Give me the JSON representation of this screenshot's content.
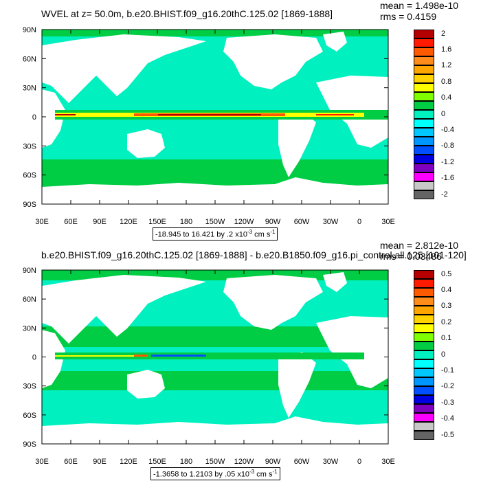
{
  "panels": [
    {
      "title": "WVEL at z=  50.0m, b.e20.BHIST.f09_g16.20thC.125.02 [1869-1888]",
      "mean": "mean = 1.498e-10",
      "rms": "rms = 0.4159",
      "range_text": "-18.945 to 16.421 by .2 x10",
      "range_exp": "-3",
      "range_unit": " cm s",
      "range_unit_exp": "-1",
      "lat_labels": [
        "90N",
        "60N",
        "30N",
        "0",
        "30S",
        "60S",
        "90S"
      ],
      "lon_labels": [
        "30E",
        "60E",
        "90E",
        "120E",
        "150E",
        "180",
        "150W",
        "120W",
        "90W",
        "60W",
        "30W",
        "0",
        "30E"
      ],
      "colorbar_labels": [
        "2",
        "1.6",
        "1.2",
        "0.8",
        "0.4",
        "0",
        "-0.4",
        "-0.8",
        "-1.2",
        "-1.6",
        "-2"
      ],
      "colorbar_colors": [
        "#b40000",
        "#ff1a00",
        "#ff5a00",
        "#ff8c1a",
        "#ffa500",
        "#ffd200",
        "#ffff00",
        "#7fff00",
        "#00cc44",
        "#00f0c0",
        "#00ffff",
        "#00c8ff",
        "#0096ff",
        "#0050ff",
        "#0000e0",
        "#8000c0",
        "#ff00ff",
        "#c8c8c8",
        "#646464"
      ]
    },
    {
      "title": "b.e20.BHIST.f09_g16.20thC.125.02 [1869-1888] - b.e20.B1850.f09_g16.pi_control.all.125 [101-120]",
      "mean": "mean = 2.812e-10",
      "rms": "rms = 0.03486",
      "range_text": "-1.3658 to 1.2103 by .05 x10",
      "range_exp": "-3",
      "range_unit": " cm s",
      "range_unit_exp": "-1",
      "lat_labels": [
        "90N",
        "60N",
        "30N",
        "0",
        "30S",
        "60S",
        "90S"
      ],
      "lon_labels": [
        "30E",
        "60E",
        "90E",
        "120E",
        "150E",
        "180",
        "150W",
        "120W",
        "90W",
        "60W",
        "30W",
        "0",
        "30E"
      ],
      "colorbar_labels": [
        "0.5",
        "0.4",
        "0.3",
        "0.2",
        "0.1",
        "0",
        "-0.1",
        "-0.2",
        "-0.3",
        "-0.4",
        "-0.5"
      ],
      "colorbar_colors": [
        "#b40000",
        "#ff1a00",
        "#ff5a00",
        "#ff8c1a",
        "#ffa500",
        "#ffd200",
        "#ffff00",
        "#7fff00",
        "#00cc44",
        "#00f0c0",
        "#00ffff",
        "#00c8ff",
        "#0096ff",
        "#0050ff",
        "#0000e0",
        "#8000c0",
        "#ff00ff",
        "#c8c8c8",
        "#646464"
      ]
    }
  ],
  "colors": {
    "ocean_neutral": "#00f0c0",
    "ocean_positive": "#00cc44",
    "land": "#ffffff",
    "equator_strong": "#b40000"
  }
}
